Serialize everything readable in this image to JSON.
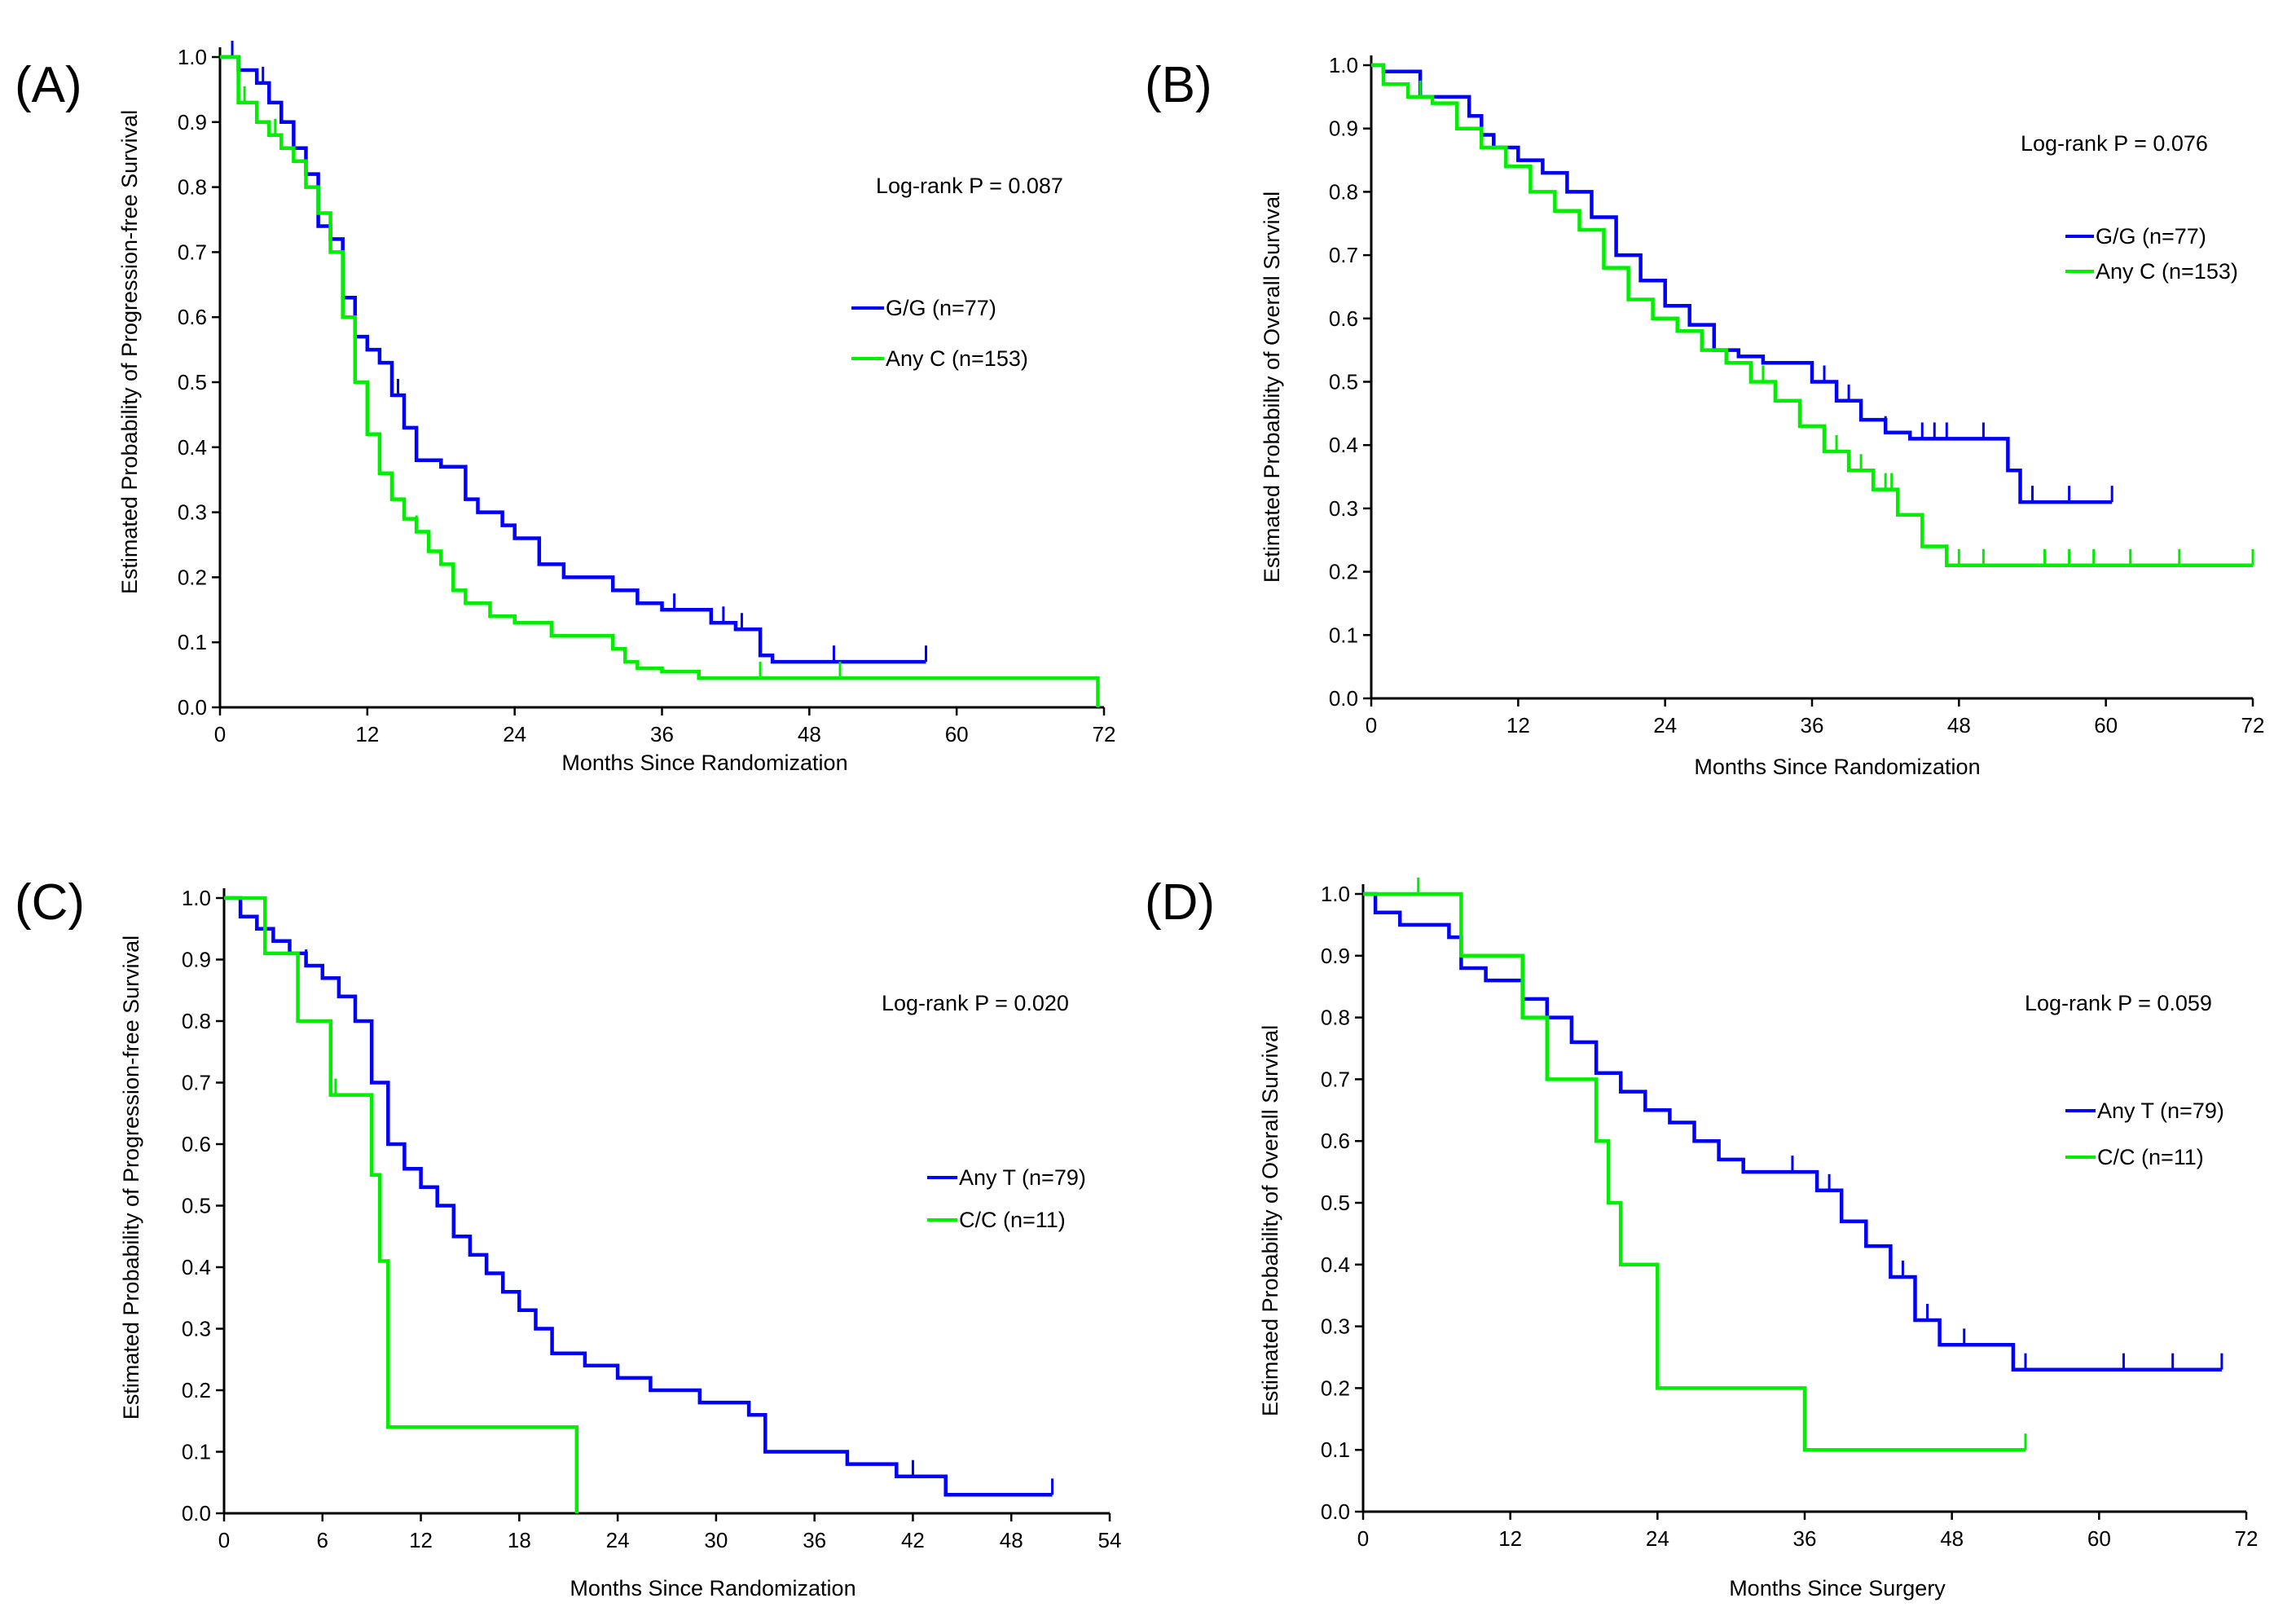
{
  "chart_data": [
    {
      "type": "line",
      "panel_label": "(A)",
      "xlabel": "Months  Since  Randomization",
      "ylabel": "Estimated  Probability  of  Progression-free  Survival",
      "annotation": "Log-rank P = 0.087",
      "xlim": [
        0,
        72
      ],
      "ylim": [
        0,
        1
      ],
      "xticks": [
        0,
        12,
        24,
        36,
        48,
        60,
        72
      ],
      "yticks": [
        0.0,
        0.1,
        0.2,
        0.3,
        0.4,
        0.5,
        0.6,
        0.7,
        0.8,
        0.9,
        1.0
      ],
      "legend_position": "right-middle",
      "series": [
        {
          "name": "G/G (n=77)",
          "color": "#0000ff",
          "x": [
            0,
            1.5,
            3,
            4,
            5,
            6,
            7,
            8,
            9,
            10,
            11,
            12,
            13,
            14,
            15,
            16,
            18,
            20,
            21,
            23,
            24,
            26,
            28,
            30,
            32,
            34,
            36,
            38,
            40,
            42,
            44,
            45,
            48,
            57.5
          ],
          "y": [
            1.0,
            0.98,
            0.96,
            0.93,
            0.9,
            0.86,
            0.82,
            0.74,
            0.72,
            0.63,
            0.57,
            0.55,
            0.53,
            0.48,
            0.43,
            0.38,
            0.37,
            0.32,
            0.3,
            0.28,
            0.26,
            0.22,
            0.2,
            0.2,
            0.18,
            0.16,
            0.15,
            0.15,
            0.13,
            0.12,
            0.08,
            0.07,
            0.07,
            0.07
          ],
          "censor_x": [
            1,
            3.5,
            14.5,
            37,
            41,
            42.5,
            50,
            57.5
          ]
        },
        {
          "name": "Any C (n=153)",
          "color": "#00ee00",
          "x": [
            0,
            1.5,
            3,
            4,
            5,
            6,
            7,
            8,
            9,
            10,
            11,
            12,
            13,
            14,
            15,
            16,
            17,
            18,
            19,
            20,
            22,
            24,
            27,
            30,
            32,
            33,
            34,
            36,
            39,
            44,
            46,
            71.5
          ],
          "y": [
            1.0,
            0.93,
            0.9,
            0.88,
            0.86,
            0.84,
            0.8,
            0.76,
            0.7,
            0.6,
            0.5,
            0.42,
            0.36,
            0.32,
            0.29,
            0.27,
            0.24,
            0.22,
            0.18,
            0.16,
            0.14,
            0.13,
            0.11,
            0.11,
            0.09,
            0.07,
            0.06,
            0.055,
            0.045,
            0.045,
            0.045,
            0.0
          ],
          "censor_x": [
            2,
            4.5,
            16,
            44,
            50.5
          ]
        }
      ]
    },
    {
      "type": "line",
      "panel_label": "(B)",
      "xlabel": "Months  Since  Randomization",
      "ylabel": "Estimated  Probability  of  Overall  Survival",
      "annotation": "Log-rank P = 0.076",
      "xlim": [
        0,
        72
      ],
      "ylim": [
        0,
        1
      ],
      "xticks": [
        0,
        12,
        24,
        36,
        48,
        60,
        72
      ],
      "yticks": [
        0.0,
        0.1,
        0.2,
        0.3,
        0.4,
        0.5,
        0.6,
        0.7,
        0.8,
        0.9,
        1.0
      ],
      "legend_position": "top-right",
      "series": [
        {
          "name": "G/G (n=77)",
          "color": "#0000ff",
          "x": [
            0,
            1,
            4,
            8,
            9,
            10,
            12,
            14,
            16,
            18,
            20,
            22,
            24,
            26,
            28,
            30,
            32,
            34,
            36,
            38,
            40,
            42,
            44,
            46,
            52,
            53,
            56,
            60.5
          ],
          "y": [
            1.0,
            0.99,
            0.95,
            0.92,
            0.89,
            0.87,
            0.85,
            0.83,
            0.8,
            0.76,
            0.7,
            0.66,
            0.62,
            0.59,
            0.55,
            0.54,
            0.53,
            0.53,
            0.5,
            0.47,
            0.44,
            0.42,
            0.41,
            0.41,
            0.36,
            0.31,
            0.31,
            0.31
          ],
          "censor_x": [
            37,
            39,
            42,
            45,
            46,
            47,
            50,
            52,
            54,
            57,
            60.5
          ]
        },
        {
          "name": "Any C (n=153)",
          "color": "#00ee00",
          "x": [
            0,
            1,
            3,
            5,
            7,
            9,
            11,
            13,
            15,
            17,
            19,
            21,
            23,
            25,
            27,
            29,
            31,
            33,
            35,
            37,
            39,
            41,
            43,
            45,
            47,
            72
          ],
          "y": [
            1.0,
            0.97,
            0.95,
            0.94,
            0.9,
            0.87,
            0.84,
            0.8,
            0.77,
            0.74,
            0.68,
            0.63,
            0.6,
            0.58,
            0.55,
            0.53,
            0.5,
            0.47,
            0.43,
            0.39,
            0.36,
            0.33,
            0.29,
            0.24,
            0.21,
            0.21
          ],
          "censor_x": [
            4,
            32,
            38,
            40,
            41,
            42,
            42.5,
            43,
            48,
            50,
            55,
            57,
            59,
            62,
            66,
            72
          ]
        }
      ]
    },
    {
      "type": "line",
      "panel_label": "(C)",
      "xlabel": "Months  Since  Randomization",
      "ylabel": "Estimated  Probability  of  Progression-free  Survival",
      "annotation": "Log-rank P = 0.020",
      "xlim": [
        0,
        54
      ],
      "ylim": [
        0,
        1
      ],
      "xticks": [
        0,
        6,
        12,
        18,
        24,
        30,
        36,
        42,
        48,
        54
      ],
      "yticks": [
        0.0,
        0.1,
        0.2,
        0.3,
        0.4,
        0.5,
        0.6,
        0.7,
        0.8,
        0.9,
        1.0
      ],
      "legend_position": "right-middle",
      "series": [
        {
          "name": "Any T (n=79)",
          "color": "#0000ff",
          "x": [
            0,
            1,
            2,
            3,
            4,
            5,
            6,
            7,
            8,
            9,
            10,
            11,
            12,
            13,
            14,
            15,
            16,
            17,
            18,
            19,
            20,
            22,
            24,
            26,
            29,
            32,
            33,
            38,
            41,
            44,
            50.5
          ],
          "y": [
            1.0,
            0.97,
            0.95,
            0.93,
            0.91,
            0.89,
            0.87,
            0.84,
            0.8,
            0.7,
            0.6,
            0.56,
            0.53,
            0.5,
            0.45,
            0.42,
            0.39,
            0.36,
            0.33,
            0.3,
            0.26,
            0.24,
            0.22,
            0.2,
            0.18,
            0.16,
            0.1,
            0.08,
            0.06,
            0.03,
            0.03
          ],
          "censor_x": [
            5,
            7,
            14,
            42,
            50.5
          ]
        },
        {
          "name": "C/C (n=11)",
          "color": "#00ee00",
          "x": [
            0,
            2.5,
            4.5,
            6.5,
            9,
            9.5,
            10,
            21.5
          ],
          "y": [
            1.0,
            0.91,
            0.8,
            0.68,
            0.55,
            0.41,
            0.14,
            0.0
          ],
          "censor_x": [
            4.5,
            6.8
          ]
        }
      ]
    },
    {
      "type": "line",
      "panel_label": "(D)",
      "xlabel": "Months  Since  Surgery",
      "ylabel": "Estimated  Probability  of  Overall  Survival",
      "annotation": "Log-rank P = 0.059",
      "xlim": [
        0,
        72
      ],
      "ylim": [
        0,
        1
      ],
      "xticks": [
        0,
        12,
        24,
        36,
        48,
        60,
        72
      ],
      "yticks": [
        0.0,
        0.1,
        0.2,
        0.3,
        0.4,
        0.5,
        0.6,
        0.7,
        0.8,
        0.9,
        1.0
      ],
      "legend_position": "right-middle",
      "series": [
        {
          "name": "Any T (n=79)",
          "color": "#0000ff",
          "x": [
            0,
            1,
            3,
            7,
            8,
            10,
            13,
            15,
            17,
            19,
            21,
            23,
            25,
            27,
            29,
            31,
            35,
            37,
            39,
            41,
            43,
            45,
            47,
            52,
            53,
            70
          ],
          "y": [
            1.0,
            0.97,
            0.95,
            0.93,
            0.88,
            0.86,
            0.83,
            0.8,
            0.76,
            0.71,
            0.68,
            0.65,
            0.63,
            0.6,
            0.57,
            0.55,
            0.55,
            0.52,
            0.47,
            0.43,
            0.38,
            0.31,
            0.27,
            0.27,
            0.23,
            0.23
          ],
          "censor_x": [
            35,
            38,
            41,
            44,
            46,
            49,
            54,
            62,
            66,
            70
          ]
        },
        {
          "name": "C/C (n=11)",
          "color": "#00ee00",
          "x": [
            0,
            8,
            13,
            15,
            19,
            20,
            21,
            24,
            36,
            54
          ],
          "y": [
            1.0,
            0.9,
            0.8,
            0.7,
            0.6,
            0.5,
            0.4,
            0.2,
            0.1,
            0.1
          ],
          "censor_x": [
            4.5,
            54
          ]
        }
      ]
    }
  ]
}
